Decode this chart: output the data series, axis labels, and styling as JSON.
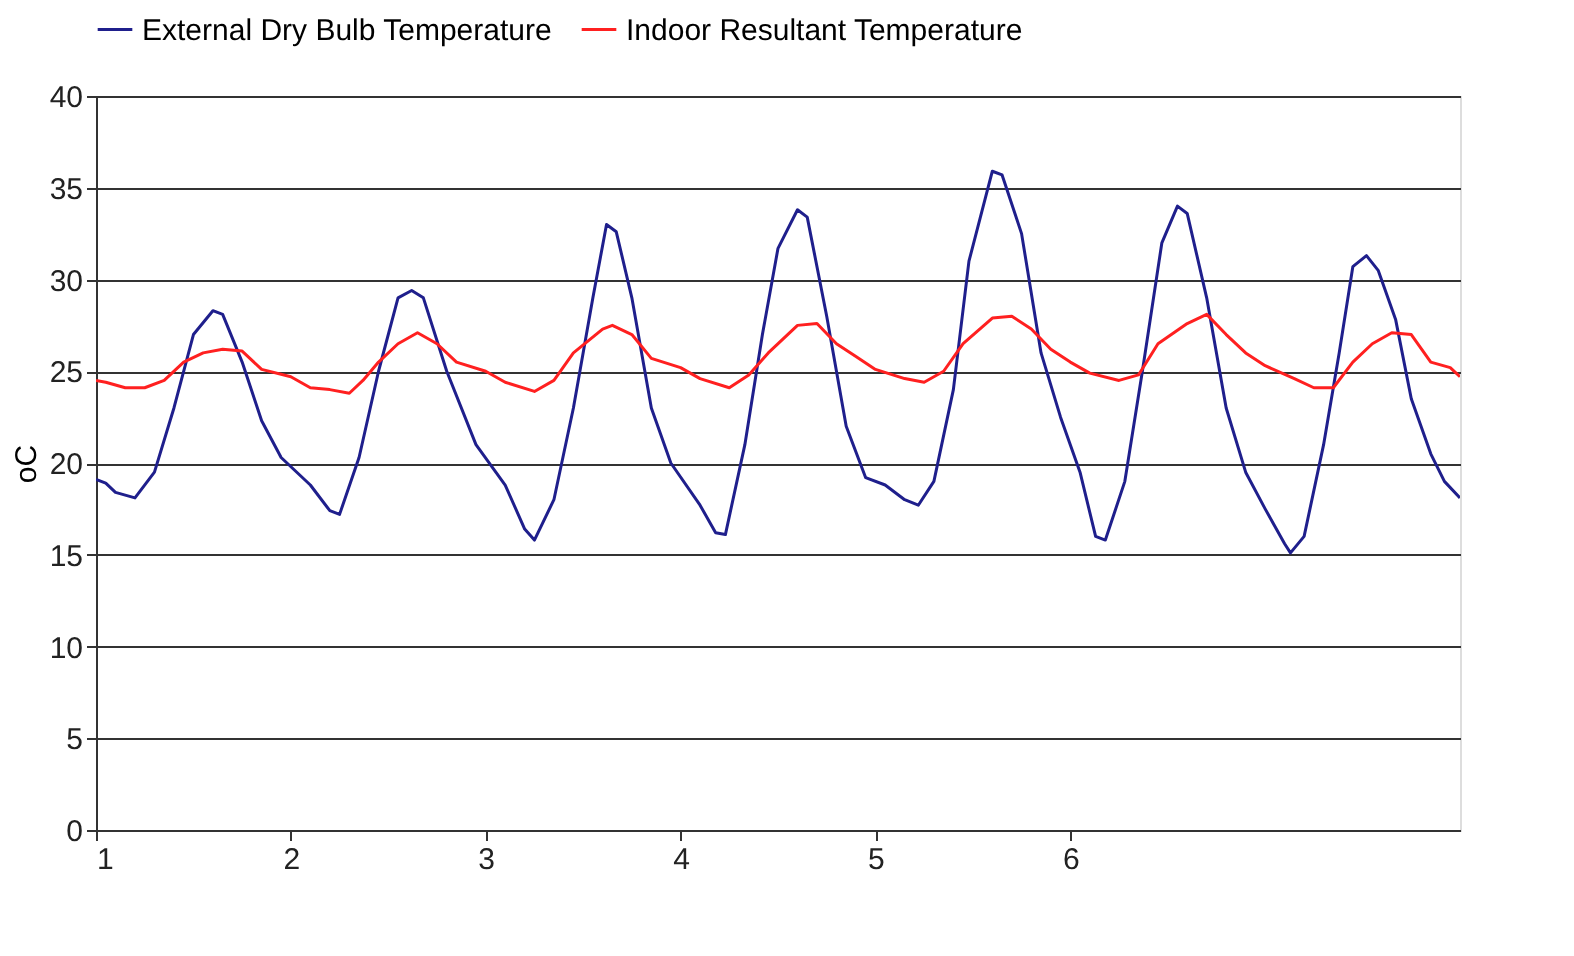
{
  "chart_data": {
    "type": "line",
    "ylabel": "oC",
    "xlim": [
      1,
      8
    ],
    "xticks": [
      1,
      2,
      3,
      4,
      5,
      6
    ],
    "ylim": [
      0,
      40
    ],
    "yticks": [
      0,
      5,
      10,
      15,
      20,
      25,
      30,
      35,
      40
    ],
    "grid": "y",
    "legend": "top",
    "marker": "none",
    "line_style": "solid",
    "series": [
      {
        "name": "External Dry Bulb Temperature",
        "color": "#1f1f8c",
        "x": [
          1.0,
          1.05,
          1.1,
          1.2,
          1.3,
          1.4,
          1.5,
          1.6,
          1.65,
          1.75,
          1.85,
          1.95,
          2.1,
          2.2,
          2.25,
          2.35,
          2.45,
          2.55,
          2.62,
          2.68,
          2.8,
          2.95,
          3.1,
          3.2,
          3.25,
          3.35,
          3.45,
          3.55,
          3.62,
          3.67,
          3.75,
          3.85,
          3.95,
          4.1,
          4.18,
          4.23,
          4.33,
          4.42,
          4.5,
          4.6,
          4.65,
          4.75,
          4.85,
          4.95,
          5.05,
          5.15,
          5.22,
          5.3,
          5.4,
          5.48,
          5.6,
          5.65,
          5.75,
          5.85,
          5.95,
          6.05,
          6.13,
          6.18,
          6.28,
          6.37,
          6.47,
          6.55,
          6.6,
          6.7,
          6.8,
          6.9,
          7.0,
          7.1,
          7.13,
          7.2,
          7.3,
          7.38,
          7.45,
          7.52,
          7.58,
          7.67,
          7.75,
          7.85,
          7.92,
          8.0
        ],
        "values": [
          19.1,
          18.9,
          18.4,
          18.1,
          19.5,
          23,
          27,
          28.3,
          28.1,
          25.5,
          22.3,
          20.3,
          18.8,
          17.4,
          17.2,
          20.3,
          25,
          29,
          29.4,
          29,
          25,
          21,
          18.8,
          16.4,
          15.8,
          18,
          23,
          29,
          33,
          32.6,
          29,
          23,
          20,
          17.7,
          16.2,
          16.1,
          21,
          27,
          31.7,
          33.8,
          33.4,
          28,
          22,
          19.2,
          18.8,
          18,
          17.7,
          19,
          24,
          31,
          35.9,
          35.7,
          32.5,
          26,
          22.5,
          19.5,
          16,
          15.8,
          19,
          25,
          32,
          34,
          33.6,
          29,
          23,
          19.5,
          17.5,
          15.6,
          15.1,
          16,
          21,
          26,
          30.7,
          31.3,
          30.5,
          27.8,
          23.5,
          20.5,
          19,
          18.1
        ]
      },
      {
        "name": "Indoor Resultant Temperature",
        "color": "#ff2020",
        "x": [
          1.0,
          1.05,
          1.15,
          1.25,
          1.35,
          1.45,
          1.55,
          1.65,
          1.75,
          1.85,
          2.0,
          2.1,
          2.2,
          2.3,
          2.37,
          2.45,
          2.55,
          2.65,
          2.75,
          2.85,
          3.0,
          3.1,
          3.25,
          3.35,
          3.45,
          3.6,
          3.65,
          3.75,
          3.85,
          4.0,
          4.1,
          4.25,
          4.35,
          4.45,
          4.6,
          4.7,
          4.8,
          4.9,
          5.0,
          5.15,
          5.25,
          5.35,
          5.45,
          5.6,
          5.7,
          5.8,
          5.9,
          6.0,
          6.1,
          6.25,
          6.35,
          6.45,
          6.6,
          6.7,
          6.8,
          6.9,
          7.0,
          7.15,
          7.25,
          7.35,
          7.45,
          7.55,
          7.65,
          7.75,
          7.85,
          7.95,
          8.0
        ],
        "values": [
          24.5,
          24.4,
          24.1,
          24.1,
          24.5,
          25.5,
          26,
          26.2,
          26.1,
          25.1,
          24.7,
          24.1,
          24,
          23.8,
          24.5,
          25.5,
          26.5,
          27.1,
          26.5,
          25.5,
          25,
          24.4,
          23.9,
          24.5,
          26,
          27.3,
          27.5,
          27,
          25.7,
          25.2,
          24.6,
          24.1,
          24.8,
          26,
          27.5,
          27.6,
          26.5,
          25.8,
          25.1,
          24.6,
          24.4,
          25,
          26.5,
          27.9,
          28,
          27.3,
          26.2,
          25.5,
          24.9,
          24.5,
          24.8,
          26.5,
          27.6,
          28.1,
          27,
          26,
          25.3,
          24.6,
          24.1,
          24.1,
          25.5,
          26.5,
          27.1,
          27,
          25.5,
          25.2,
          24.7
        ]
      }
    ]
  }
}
